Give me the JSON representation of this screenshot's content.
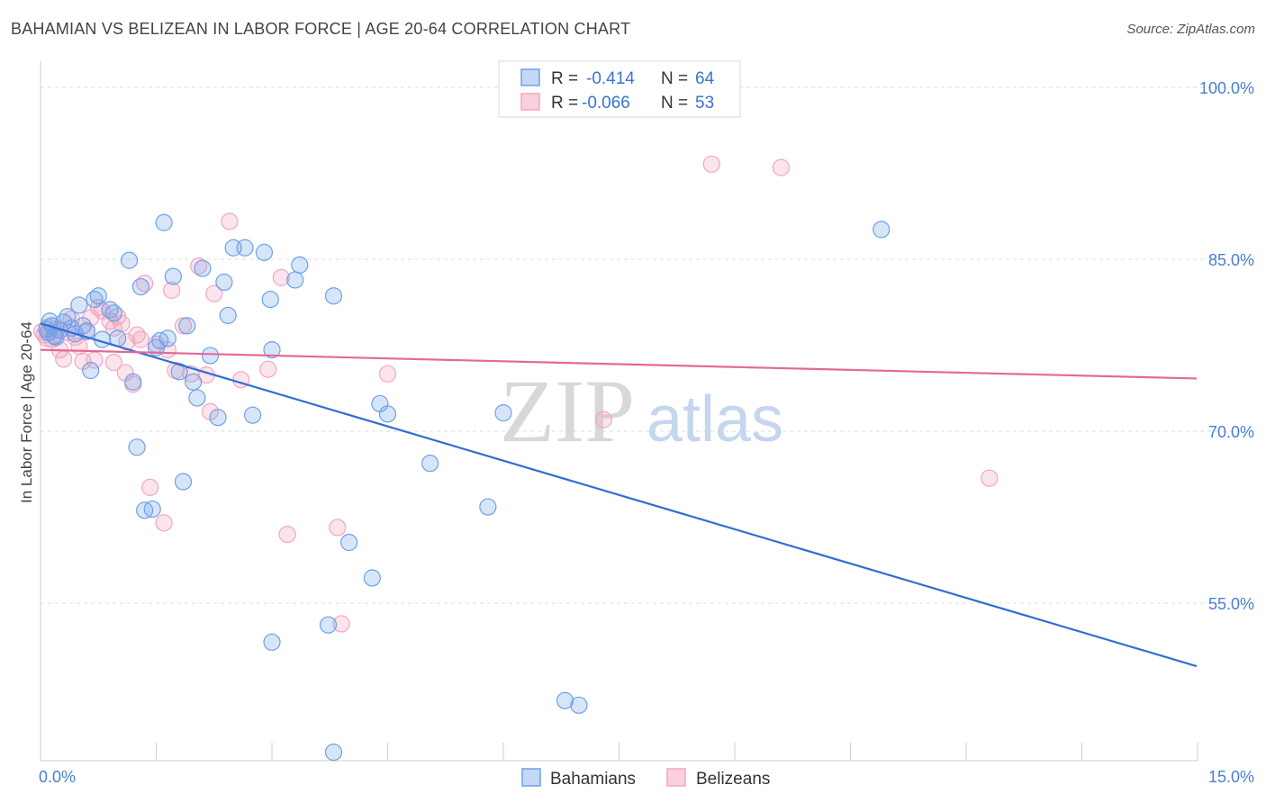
{
  "title": "BAHAMIAN VS BELIZEAN IN LABOR FORCE | AGE 20-64 CORRELATION CHART",
  "source": "Source: ZipAtlas.com",
  "watermark": {
    "zip": "ZIP",
    "atlas": "atlas"
  },
  "colors": {
    "blue": "#6fa0e8",
    "pink": "#f3a6c0",
    "blue_line": "#2f6fd2",
    "pink_line": "#e26a96"
  },
  "legend": {
    "rows": [
      {
        "r_label": "R = ",
        "r_value": "-0.414",
        "n_label": "N = ",
        "n_value": "64"
      },
      {
        "r_label": "R = ",
        "r_value": "-0.066",
        "n_label": "N = ",
        "n_value": "53"
      }
    ]
  },
  "bottom_legend": [
    "Bahamians",
    "Belizeans"
  ],
  "chart_data": {
    "type": "scatter",
    "title": "BAHAMIAN VS BELIZEAN IN LABOR FORCE | AGE 20-64 CORRELATION CHART",
    "xlabel": "",
    "ylabel": "In Labor Force | Age 20-64",
    "xlim": [
      0,
      15
    ],
    "ylim": [
      41,
      101.5
    ],
    "x_tick_labels": [
      "0.0%",
      "15.0%"
    ],
    "y_ticks": [
      100,
      85,
      70,
      55
    ],
    "y_tick_labels": [
      "100.0%",
      "85.0%",
      "70.0%",
      "55.0%"
    ],
    "grid": true,
    "legend_position": "top-center",
    "series": [
      {
        "name": "Bahamians",
        "color": "#6fa0e8",
        "trend": {
          "x": [
            0,
            15
          ],
          "y": [
            79.4,
            49.5
          ]
        },
        "points": [
          [
            0.1,
            78.6
          ],
          [
            0.15,
            79.2
          ],
          [
            0.2,
            78.2
          ],
          [
            0.25,
            78.8
          ],
          [
            0.3,
            79.5
          ],
          [
            0.35,
            80.0
          ],
          [
            0.4,
            79.0
          ],
          [
            0.45,
            78.5
          ],
          [
            0.5,
            81.0
          ],
          [
            0.55,
            79.2
          ],
          [
            0.6,
            78.7
          ],
          [
            0.65,
            75.3
          ],
          [
            0.7,
            81.5
          ],
          [
            0.75,
            81.8
          ],
          [
            0.8,
            78.0
          ],
          [
            0.9,
            80.6
          ],
          [
            0.95,
            80.3
          ],
          [
            1.0,
            78.1
          ],
          [
            1.15,
            84.9
          ],
          [
            1.2,
            74.3
          ],
          [
            1.25,
            68.6
          ],
          [
            1.3,
            82.6
          ],
          [
            1.35,
            63.1
          ],
          [
            1.45,
            63.2
          ],
          [
            1.5,
            77.3
          ],
          [
            1.55,
            77.9
          ],
          [
            1.6,
            88.2
          ],
          [
            1.65,
            78.1
          ],
          [
            1.72,
            83.5
          ],
          [
            1.8,
            75.2
          ],
          [
            1.85,
            65.6
          ],
          [
            1.9,
            79.2
          ],
          [
            1.98,
            74.3
          ],
          [
            2.03,
            72.9
          ],
          [
            2.1,
            84.2
          ],
          [
            2.2,
            76.6
          ],
          [
            2.3,
            71.2
          ],
          [
            2.38,
            83.0
          ],
          [
            2.43,
            80.1
          ],
          [
            2.5,
            86.0
          ],
          [
            2.65,
            86.0
          ],
          [
            2.75,
            71.4
          ],
          [
            2.9,
            85.6
          ],
          [
            2.98,
            81.5
          ],
          [
            3.0,
            77.1
          ],
          [
            3.3,
            83.2
          ],
          [
            3.36,
            84.5
          ],
          [
            3.8,
            81.8
          ],
          [
            4.4,
            72.4
          ],
          [
            4.5,
            71.5
          ],
          [
            5.05,
            67.2
          ],
          [
            5.8,
            63.4
          ],
          [
            6.0,
            71.6
          ],
          [
            3.73,
            53.1
          ],
          [
            3.0,
            51.6
          ],
          [
            4.0,
            60.3
          ],
          [
            4.3,
            57.2
          ],
          [
            6.8,
            46.5
          ],
          [
            6.98,
            46.1
          ],
          [
            3.8,
            42.0
          ],
          [
            10.9,
            87.6
          ],
          [
            0.08,
            78.9
          ],
          [
            0.12,
            79.6
          ],
          [
            0.18,
            78.3
          ]
        ]
      },
      {
        "name": "Belizeans",
        "color": "#f3a6c0",
        "trend": {
          "x": [
            0,
            15
          ],
          "y": [
            77.1,
            74.6
          ]
        },
        "points": [
          [
            0.05,
            78.4
          ],
          [
            0.1,
            79.1
          ],
          [
            0.15,
            78.0
          ],
          [
            0.2,
            78.9
          ],
          [
            0.25,
            77.1
          ],
          [
            0.3,
            76.3
          ],
          [
            0.35,
            78.6
          ],
          [
            0.4,
            79.8
          ],
          [
            0.45,
            78.2
          ],
          [
            0.5,
            77.4
          ],
          [
            0.55,
            76.1
          ],
          [
            0.6,
            78.8
          ],
          [
            0.65,
            79.9
          ],
          [
            0.7,
            76.2
          ],
          [
            0.75,
            80.8
          ],
          [
            0.8,
            80.5
          ],
          [
            0.9,
            79.6
          ],
          [
            0.95,
            79.0
          ],
          [
            1.0,
            80.0
          ],
          [
            1.05,
            79.4
          ],
          [
            1.1,
            75.1
          ],
          [
            1.2,
            74.1
          ],
          [
            1.25,
            78.4
          ],
          [
            1.3,
            78.0
          ],
          [
            1.35,
            82.9
          ],
          [
            1.42,
            65.1
          ],
          [
            1.5,
            77.6
          ],
          [
            1.6,
            62.0
          ],
          [
            1.7,
            82.3
          ],
          [
            1.75,
            75.3
          ],
          [
            1.85,
            79.2
          ],
          [
            1.95,
            75.0
          ],
          [
            2.05,
            84.4
          ],
          [
            2.2,
            71.7
          ],
          [
            2.25,
            82.0
          ],
          [
            2.45,
            88.3
          ],
          [
            2.6,
            74.5
          ],
          [
            2.95,
            75.4
          ],
          [
            3.12,
            83.4
          ],
          [
            3.2,
            61.0
          ],
          [
            4.5,
            75.0
          ],
          [
            3.85,
            61.6
          ],
          [
            3.9,
            53.2
          ],
          [
            7.3,
            71.0
          ],
          [
            8.7,
            93.3
          ],
          [
            9.6,
            93.0
          ],
          [
            12.3,
            65.9
          ],
          [
            0.02,
            78.7
          ],
          [
            0.08,
            78.1
          ],
          [
            0.95,
            76.0
          ],
          [
            1.12,
            77.8
          ],
          [
            1.65,
            77.1
          ],
          [
            2.15,
            74.9
          ]
        ]
      }
    ]
  }
}
